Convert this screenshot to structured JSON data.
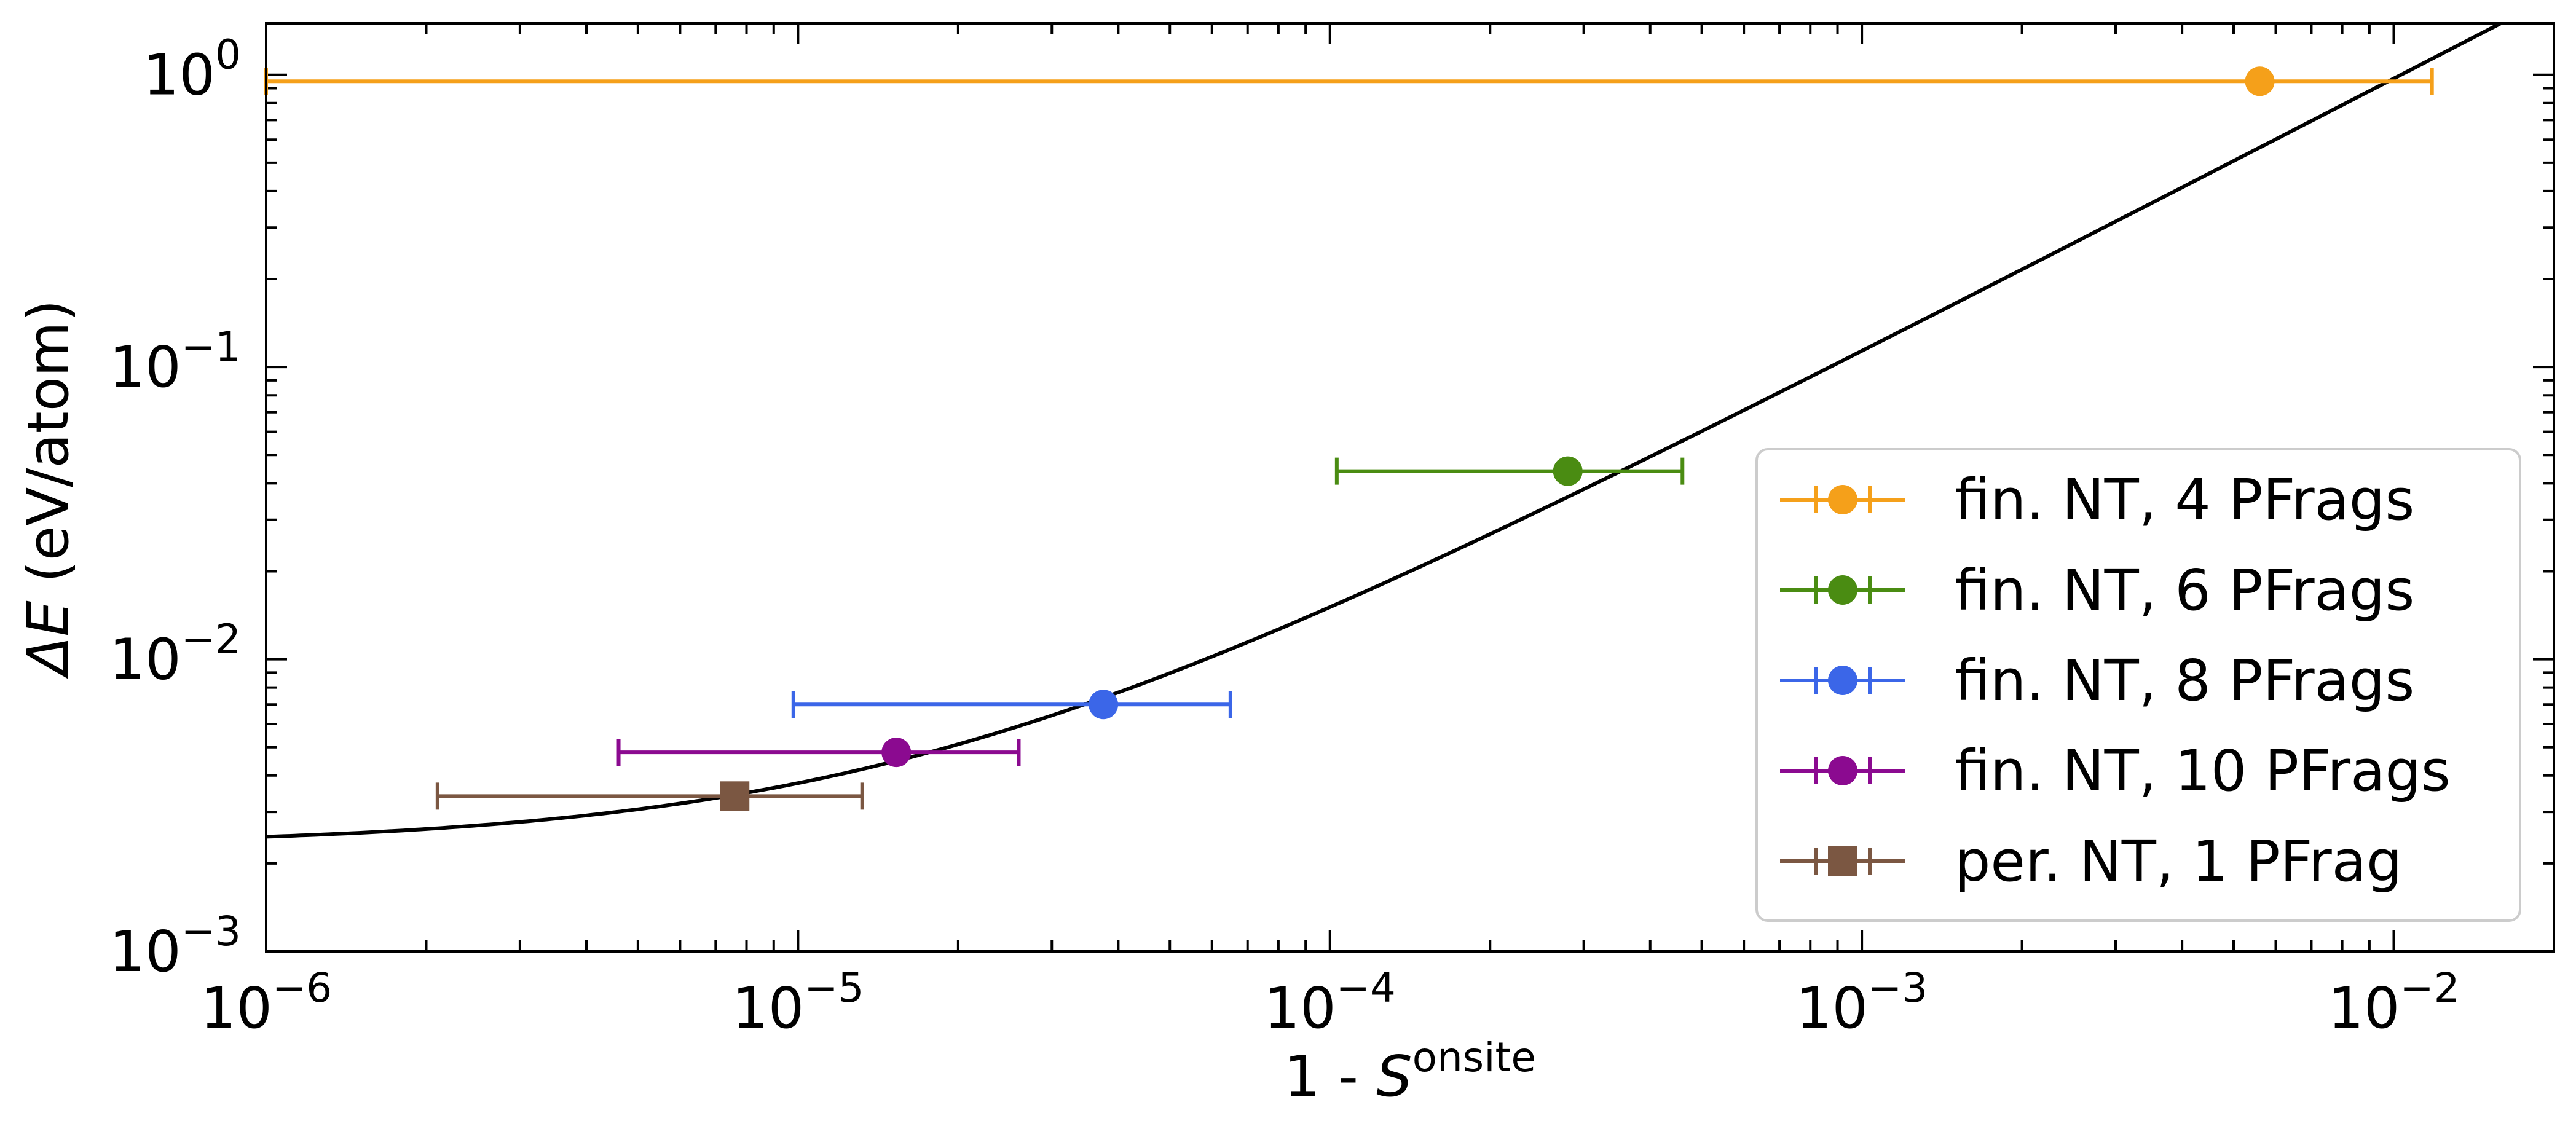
{
  "chart_data": {
    "type": "scatter",
    "xscale": "log",
    "yscale": "log",
    "xlim": [
      1e-06,
      0.02
    ],
    "ylim": [
      0.001,
      1.5
    ],
    "xlabel": {
      "prefix": "1 - ",
      "symbol": "S",
      "sup": "onsite"
    },
    "ylabel": {
      "symbol": "ΔE",
      "unit": " (eV/atom)"
    },
    "xticks": [
      {
        "value": 1e-06,
        "base": "10",
        "exp": "−6"
      },
      {
        "value": 1e-05,
        "base": "10",
        "exp": "−5"
      },
      {
        "value": 0.0001,
        "base": "10",
        "exp": "−4"
      },
      {
        "value": 0.001,
        "base": "10",
        "exp": "−3"
      },
      {
        "value": 0.01,
        "base": "10",
        "exp": "−2"
      }
    ],
    "yticks": [
      {
        "value": 0.001,
        "base": "10",
        "exp": "−3"
      },
      {
        "value": 0.01,
        "base": "10",
        "exp": "−2"
      },
      {
        "value": 0.1,
        "base": "10",
        "exp": "−1"
      },
      {
        "value": 1,
        "base": "10",
        "exp": "0"
      }
    ],
    "legend_position": "lower-right",
    "series": [
      {
        "name": "fin. NT, 4 PFrags",
        "color": "#f5a01a",
        "marker": "circle",
        "x": 0.0056,
        "y": 0.95,
        "xerr_low": 1e-06,
        "xerr_high": 0.0118
      },
      {
        "name": "fin. NT, 6 PFrags",
        "color": "#4a8c12",
        "marker": "circle",
        "x": 0.00028,
        "y": 0.044,
        "xerr_low": 0.000103,
        "xerr_high": 0.00046
      },
      {
        "name": "fin. NT, 8 PFrags",
        "color": "#3b66e8",
        "marker": "circle",
        "x": 3.75e-05,
        "y": 0.007,
        "xerr_low": 9.8e-06,
        "xerr_high": 6.5e-05
      },
      {
        "name": "fin. NT, 10 PFrags",
        "color": "#8b0a90",
        "marker": "circle",
        "x": 1.53e-05,
        "y": 0.0048,
        "xerr_low": 4.6e-06,
        "xerr_high": 2.6e-05
      },
      {
        "name": "per. NT, 1 PFrag",
        "color": "#7b5742",
        "marker": "square",
        "x": 7.6e-06,
        "y": 0.0034,
        "xerr_low": 2.1e-06,
        "xerr_high": 1.32e-05
      }
    ],
    "fit_curve": {
      "color": "#000000",
      "form": "y = a + b*x^p",
      "a": 0.0023,
      "b": 73.5,
      "p": 0.94
    }
  }
}
